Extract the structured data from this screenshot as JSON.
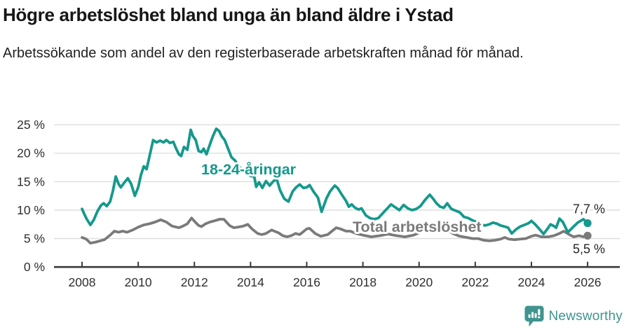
{
  "header": {
    "title": "Högre arbetslöshet bland unga än bland äldre i Ystad",
    "subtitle": "Arbetssökande som andel av den registerbaserade arbetskraften månad för månad."
  },
  "footer": {
    "brand_name": "Newsworthy"
  },
  "colors": {
    "young_line": "#15998c",
    "total_line": "#7a7a7a",
    "grid": "#dbdbdb",
    "axis": "#3a3a3a",
    "tick_text": "#2f2f2f",
    "value_label_text": "#242424",
    "brand": "#3f948e",
    "background": "#ffffff"
  },
  "chart_data": {
    "type": "line",
    "title": "Högre arbetslöshet bland unga än bland äldre i Ystad",
    "subtitle": "Arbetssökande som andel av den registerbaserade arbetskraften månad för månad.",
    "xlabel": "",
    "ylabel": "",
    "grid": "horizontal",
    "legend_position": "inline-labels",
    "x_axis": {
      "tick_labels": [
        "2008",
        "2010",
        "2012",
        "2014",
        "2016",
        "2018",
        "2020",
        "2022",
        "2024",
        "2026"
      ],
      "range": [
        2007.0,
        2027.1
      ]
    },
    "y_axis": {
      "ticks": [
        {
          "value": 0,
          "label": "0 %"
        },
        {
          "value": 5,
          "label": "5 %"
        },
        {
          "value": 10,
          "label": "10 %"
        },
        {
          "value": 15,
          "label": "15 %"
        },
        {
          "value": 20,
          "label": "20 %"
        },
        {
          "value": 25,
          "label": "25 %"
        }
      ],
      "range": [
        0,
        25
      ]
    },
    "series": [
      {
        "name": "18-24-åringar",
        "color": "#15998c",
        "end_label": "7,7 %",
        "end_value": 7.7,
        "points": [
          [
            2008.0,
            10.2
          ],
          [
            2008.08,
            9.3
          ],
          [
            2008.17,
            8.4
          ],
          [
            2008.3,
            7.4
          ],
          [
            2008.42,
            8.3
          ],
          [
            2008.55,
            9.8
          ],
          [
            2008.67,
            10.8
          ],
          [
            2008.77,
            11.2
          ],
          [
            2008.88,
            10.7
          ],
          [
            2009.0,
            11.5
          ],
          [
            2009.1,
            13.4
          ],
          [
            2009.2,
            15.9
          ],
          [
            2009.3,
            14.6
          ],
          [
            2009.38,
            14.0
          ],
          [
            2009.5,
            14.8
          ],
          [
            2009.63,
            15.6
          ],
          [
            2009.75,
            14.6
          ],
          [
            2009.88,
            12.5
          ],
          [
            2010.0,
            14.0
          ],
          [
            2010.1,
            16.2
          ],
          [
            2010.2,
            17.7
          ],
          [
            2010.3,
            17.2
          ],
          [
            2010.42,
            19.8
          ],
          [
            2010.53,
            22.3
          ],
          [
            2010.65,
            21.9
          ],
          [
            2010.78,
            22.2
          ],
          [
            2010.9,
            21.9
          ],
          [
            2011.0,
            22.3
          ],
          [
            2011.13,
            21.8
          ],
          [
            2011.25,
            22.0
          ],
          [
            2011.35,
            20.8
          ],
          [
            2011.45,
            19.8
          ],
          [
            2011.53,
            19.5
          ],
          [
            2011.63,
            21.1
          ],
          [
            2011.75,
            20.6
          ],
          [
            2011.87,
            24.1
          ],
          [
            2011.95,
            23.0
          ],
          [
            2012.05,
            22.3
          ],
          [
            2012.15,
            20.4
          ],
          [
            2012.25,
            20.2
          ],
          [
            2012.33,
            20.8
          ],
          [
            2012.43,
            19.8
          ],
          [
            2012.55,
            21.5
          ],
          [
            2012.65,
            22.9
          ],
          [
            2012.78,
            24.3
          ],
          [
            2012.88,
            23.9
          ],
          [
            2012.97,
            23.0
          ],
          [
            2013.08,
            22.3
          ],
          [
            2013.2,
            20.8
          ],
          [
            2013.32,
            19.3
          ],
          [
            2013.45,
            18.7
          ],
          [
            2013.6,
            17.6
          ],
          [
            2013.8,
            16.6
          ],
          [
            2014.0,
            16.0
          ],
          [
            2014.13,
            15.9
          ],
          [
            2014.2,
            14.1
          ],
          [
            2014.3,
            14.9
          ],
          [
            2014.42,
            13.9
          ],
          [
            2014.55,
            15.1
          ],
          [
            2014.68,
            14.3
          ],
          [
            2014.8,
            15.0
          ],
          [
            2014.93,
            15.5
          ],
          [
            2015.05,
            13.5
          ],
          [
            2015.2,
            12.0
          ],
          [
            2015.35,
            11.5
          ],
          [
            2015.5,
            13.3
          ],
          [
            2015.62,
            14.0
          ],
          [
            2015.75,
            14.5
          ],
          [
            2015.88,
            13.9
          ],
          [
            2016.0,
            14.0
          ],
          [
            2016.1,
            14.4
          ],
          [
            2016.25,
            13.2
          ],
          [
            2016.4,
            12.2
          ],
          [
            2016.53,
            9.7
          ],
          [
            2016.7,
            12.0
          ],
          [
            2016.82,
            13.2
          ],
          [
            2016.93,
            13.9
          ],
          [
            2017.0,
            14.3
          ],
          [
            2017.1,
            13.9
          ],
          [
            2017.25,
            12.7
          ],
          [
            2017.4,
            11.6
          ],
          [
            2017.5,
            10.6
          ],
          [
            2017.6,
            11.0
          ],
          [
            2017.72,
            10.4
          ],
          [
            2017.85,
            10.1
          ],
          [
            2017.95,
            10.3
          ],
          [
            2018.1,
            9.1
          ],
          [
            2018.25,
            8.6
          ],
          [
            2018.4,
            8.4
          ],
          [
            2018.55,
            8.6
          ],
          [
            2018.7,
            9.4
          ],
          [
            2018.85,
            10.2
          ],
          [
            2019.0,
            11.0
          ],
          [
            2019.15,
            10.5
          ],
          [
            2019.3,
            10.0
          ],
          [
            2019.45,
            10.9
          ],
          [
            2019.6,
            10.3
          ],
          [
            2019.75,
            10.0
          ],
          [
            2019.9,
            10.2
          ],
          [
            2020.05,
            10.7
          ],
          [
            2020.2,
            11.7
          ],
          [
            2020.38,
            12.7
          ],
          [
            2020.5,
            12.0
          ],
          [
            2020.62,
            11.2
          ],
          [
            2020.75,
            10.6
          ],
          [
            2020.88,
            10.4
          ],
          [
            2021.0,
            11.2
          ],
          [
            2021.15,
            10.2
          ],
          [
            2021.3,
            9.9
          ],
          [
            2021.45,
            9.6
          ],
          [
            2021.6,
            8.8
          ],
          [
            2021.75,
            8.6
          ],
          [
            2021.9,
            8.2
          ],
          [
            2022.05,
            7.9
          ],
          [
            2022.2,
            7.5
          ],
          [
            2022.35,
            7.3
          ],
          [
            2022.5,
            7.5
          ],
          [
            2022.63,
            7.8
          ],
          [
            2022.78,
            7.6
          ],
          [
            2022.9,
            7.3
          ],
          [
            2023.05,
            7.1
          ],
          [
            2023.17,
            6.9
          ],
          [
            2023.3,
            5.9
          ],
          [
            2023.45,
            6.6
          ],
          [
            2023.6,
            7.1
          ],
          [
            2023.75,
            7.4
          ],
          [
            2023.9,
            7.7
          ],
          [
            2024.0,
            8.1
          ],
          [
            2024.13,
            7.5
          ],
          [
            2024.28,
            6.7
          ],
          [
            2024.43,
            5.8
          ],
          [
            2024.57,
            6.7
          ],
          [
            2024.68,
            7.5
          ],
          [
            2024.8,
            7.2
          ],
          [
            2024.88,
            6.9
          ],
          [
            2025.0,
            8.5
          ],
          [
            2025.12,
            7.9
          ],
          [
            2025.3,
            6.1
          ],
          [
            2025.5,
            7.1
          ],
          [
            2025.65,
            7.8
          ],
          [
            2025.85,
            8.4
          ],
          [
            2026.0,
            7.7
          ]
        ]
      },
      {
        "name": "Total arbetslöshet",
        "color": "#7a7a7a",
        "end_label": "5,5 %",
        "end_value": 5.5,
        "points": [
          [
            2008.0,
            5.2
          ],
          [
            2008.15,
            4.9
          ],
          [
            2008.3,
            4.2
          ],
          [
            2008.5,
            4.4
          ],
          [
            2008.65,
            4.6
          ],
          [
            2008.8,
            4.8
          ],
          [
            2009.0,
            5.6
          ],
          [
            2009.15,
            6.3
          ],
          [
            2009.3,
            6.1
          ],
          [
            2009.45,
            6.3
          ],
          [
            2009.6,
            6.1
          ],
          [
            2009.8,
            6.5
          ],
          [
            2010.0,
            7.0
          ],
          [
            2010.2,
            7.4
          ],
          [
            2010.4,
            7.6
          ],
          [
            2010.6,
            7.9
          ],
          [
            2010.8,
            8.3
          ],
          [
            2011.0,
            7.9
          ],
          [
            2011.2,
            7.2
          ],
          [
            2011.45,
            6.9
          ],
          [
            2011.6,
            7.2
          ],
          [
            2011.75,
            7.6
          ],
          [
            2011.9,
            8.6
          ],
          [
            2012.05,
            7.8
          ],
          [
            2012.15,
            7.3
          ],
          [
            2012.25,
            7.1
          ],
          [
            2012.4,
            7.6
          ],
          [
            2012.55,
            7.9
          ],
          [
            2012.7,
            8.1
          ],
          [
            2012.9,
            8.4
          ],
          [
            2013.05,
            8.4
          ],
          [
            2013.25,
            7.3
          ],
          [
            2013.4,
            6.9
          ],
          [
            2013.55,
            7.0
          ],
          [
            2013.75,
            7.2
          ],
          [
            2013.9,
            7.5
          ],
          [
            2014.05,
            6.7
          ],
          [
            2014.25,
            5.9
          ],
          [
            2014.4,
            5.7
          ],
          [
            2014.55,
            5.9
          ],
          [
            2014.75,
            6.5
          ],
          [
            2015.0,
            6.0
          ],
          [
            2015.15,
            5.5
          ],
          [
            2015.3,
            5.3
          ],
          [
            2015.45,
            5.5
          ],
          [
            2015.6,
            5.9
          ],
          [
            2015.75,
            5.7
          ],
          [
            2016.0,
            6.7
          ],
          [
            2016.1,
            6.8
          ],
          [
            2016.3,
            5.9
          ],
          [
            2016.5,
            5.4
          ],
          [
            2016.75,
            5.7
          ],
          [
            2016.95,
            6.5
          ],
          [
            2017.05,
            6.9
          ],
          [
            2017.2,
            6.7
          ],
          [
            2017.4,
            6.3
          ],
          [
            2017.55,
            6.3
          ],
          [
            2017.75,
            5.9
          ],
          [
            2018.0,
            5.6
          ],
          [
            2018.3,
            5.3
          ],
          [
            2018.6,
            5.5
          ],
          [
            2018.9,
            5.8
          ],
          [
            2019.2,
            5.5
          ],
          [
            2019.5,
            5.3
          ],
          [
            2019.8,
            5.6
          ],
          [
            2020.1,
            6.2
          ],
          [
            2020.4,
            7.3
          ],
          [
            2020.7,
            7.0
          ],
          [
            2021.0,
            6.6
          ],
          [
            2021.2,
            5.9
          ],
          [
            2021.45,
            5.4
          ],
          [
            2021.7,
            5.2
          ],
          [
            2021.9,
            5.0
          ],
          [
            2022.1,
            5.0
          ],
          [
            2022.3,
            4.7
          ],
          [
            2022.5,
            4.6
          ],
          [
            2022.7,
            4.7
          ],
          [
            2022.9,
            4.9
          ],
          [
            2023.05,
            5.2
          ],
          [
            2023.2,
            4.9
          ],
          [
            2023.4,
            4.8
          ],
          [
            2023.6,
            4.9
          ],
          [
            2023.8,
            5.0
          ],
          [
            2024.0,
            5.4
          ],
          [
            2024.15,
            5.6
          ],
          [
            2024.35,
            5.3
          ],
          [
            2024.6,
            5.3
          ],
          [
            2024.8,
            5.5
          ],
          [
            2025.0,
            5.9
          ],
          [
            2025.15,
            6.3
          ],
          [
            2025.35,
            5.7
          ],
          [
            2025.5,
            5.3
          ],
          [
            2025.7,
            5.5
          ],
          [
            2025.85,
            5.3
          ],
          [
            2026.0,
            5.5
          ]
        ]
      }
    ]
  }
}
